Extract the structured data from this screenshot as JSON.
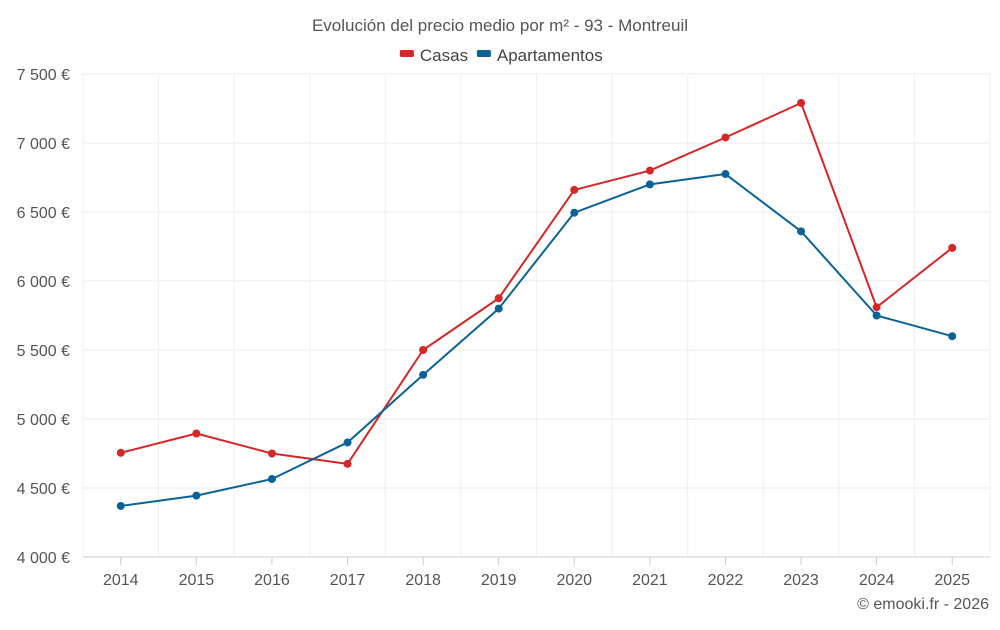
{
  "chart_data": {
    "type": "line",
    "title": "Evolución del precio medio por m² - 93 - Montreuil",
    "xlabel": "",
    "ylabel": "",
    "categories": [
      "2014",
      "2015",
      "2016",
      "2017",
      "2018",
      "2019",
      "2020",
      "2021",
      "2022",
      "2023",
      "2024",
      "2025"
    ],
    "ylim": [
      4000,
      7500
    ],
    "yticks": [
      4000,
      4500,
      5000,
      5500,
      6000,
      6500,
      7000,
      7500
    ],
    "ytick_labels": [
      "4 000 €",
      "4 500 €",
      "5 000 €",
      "5 500 €",
      "6 000 €",
      "6 500 €",
      "7 000 €",
      "7 500 €"
    ],
    "grid": true,
    "legend_position": "top-center",
    "series": [
      {
        "name": "Casas",
        "color": "#d62728",
        "values": [
          4755,
          4895,
          4750,
          4675,
          5500,
          5875,
          6660,
          6800,
          7040,
          7290,
          5810,
          6240
        ]
      },
      {
        "name": "Apartamentos",
        "color": "#0a6396",
        "values": [
          4370,
          4445,
          4565,
          4830,
          5320,
          5800,
          6495,
          6700,
          6775,
          6360,
          5750,
          5600
        ]
      }
    ]
  },
  "footer": {
    "credit": "© emooki.fr - 2026"
  }
}
